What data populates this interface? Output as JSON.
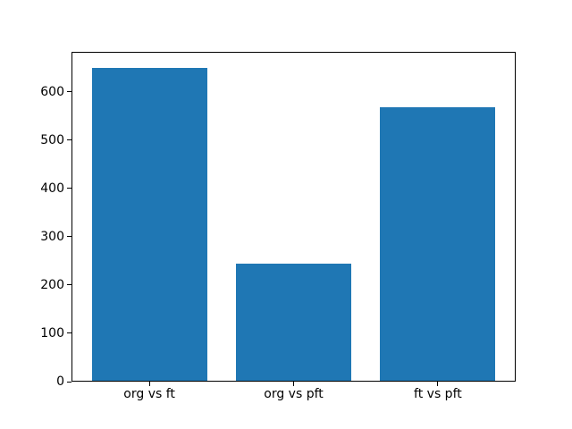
{
  "chart_data": {
    "type": "bar",
    "categories": [
      "org vs ft",
      "org vs pft",
      "ft vs pft"
    ],
    "values": [
      650,
      245,
      567
    ],
    "title": "",
    "xlabel": "",
    "ylabel": "",
    "yticks": [
      0,
      100,
      200,
      300,
      400,
      500,
      600
    ],
    "xlim": [
      -0.54,
      2.54
    ],
    "ylim": [
      0,
      682.5
    ],
    "bar_width": 0.8,
    "bar_color": "#1f77b4",
    "axis_color": "#000000",
    "tick_label_color": "#000000",
    "background_color": "#ffffff",
    "grid": false,
    "legend": null
  }
}
